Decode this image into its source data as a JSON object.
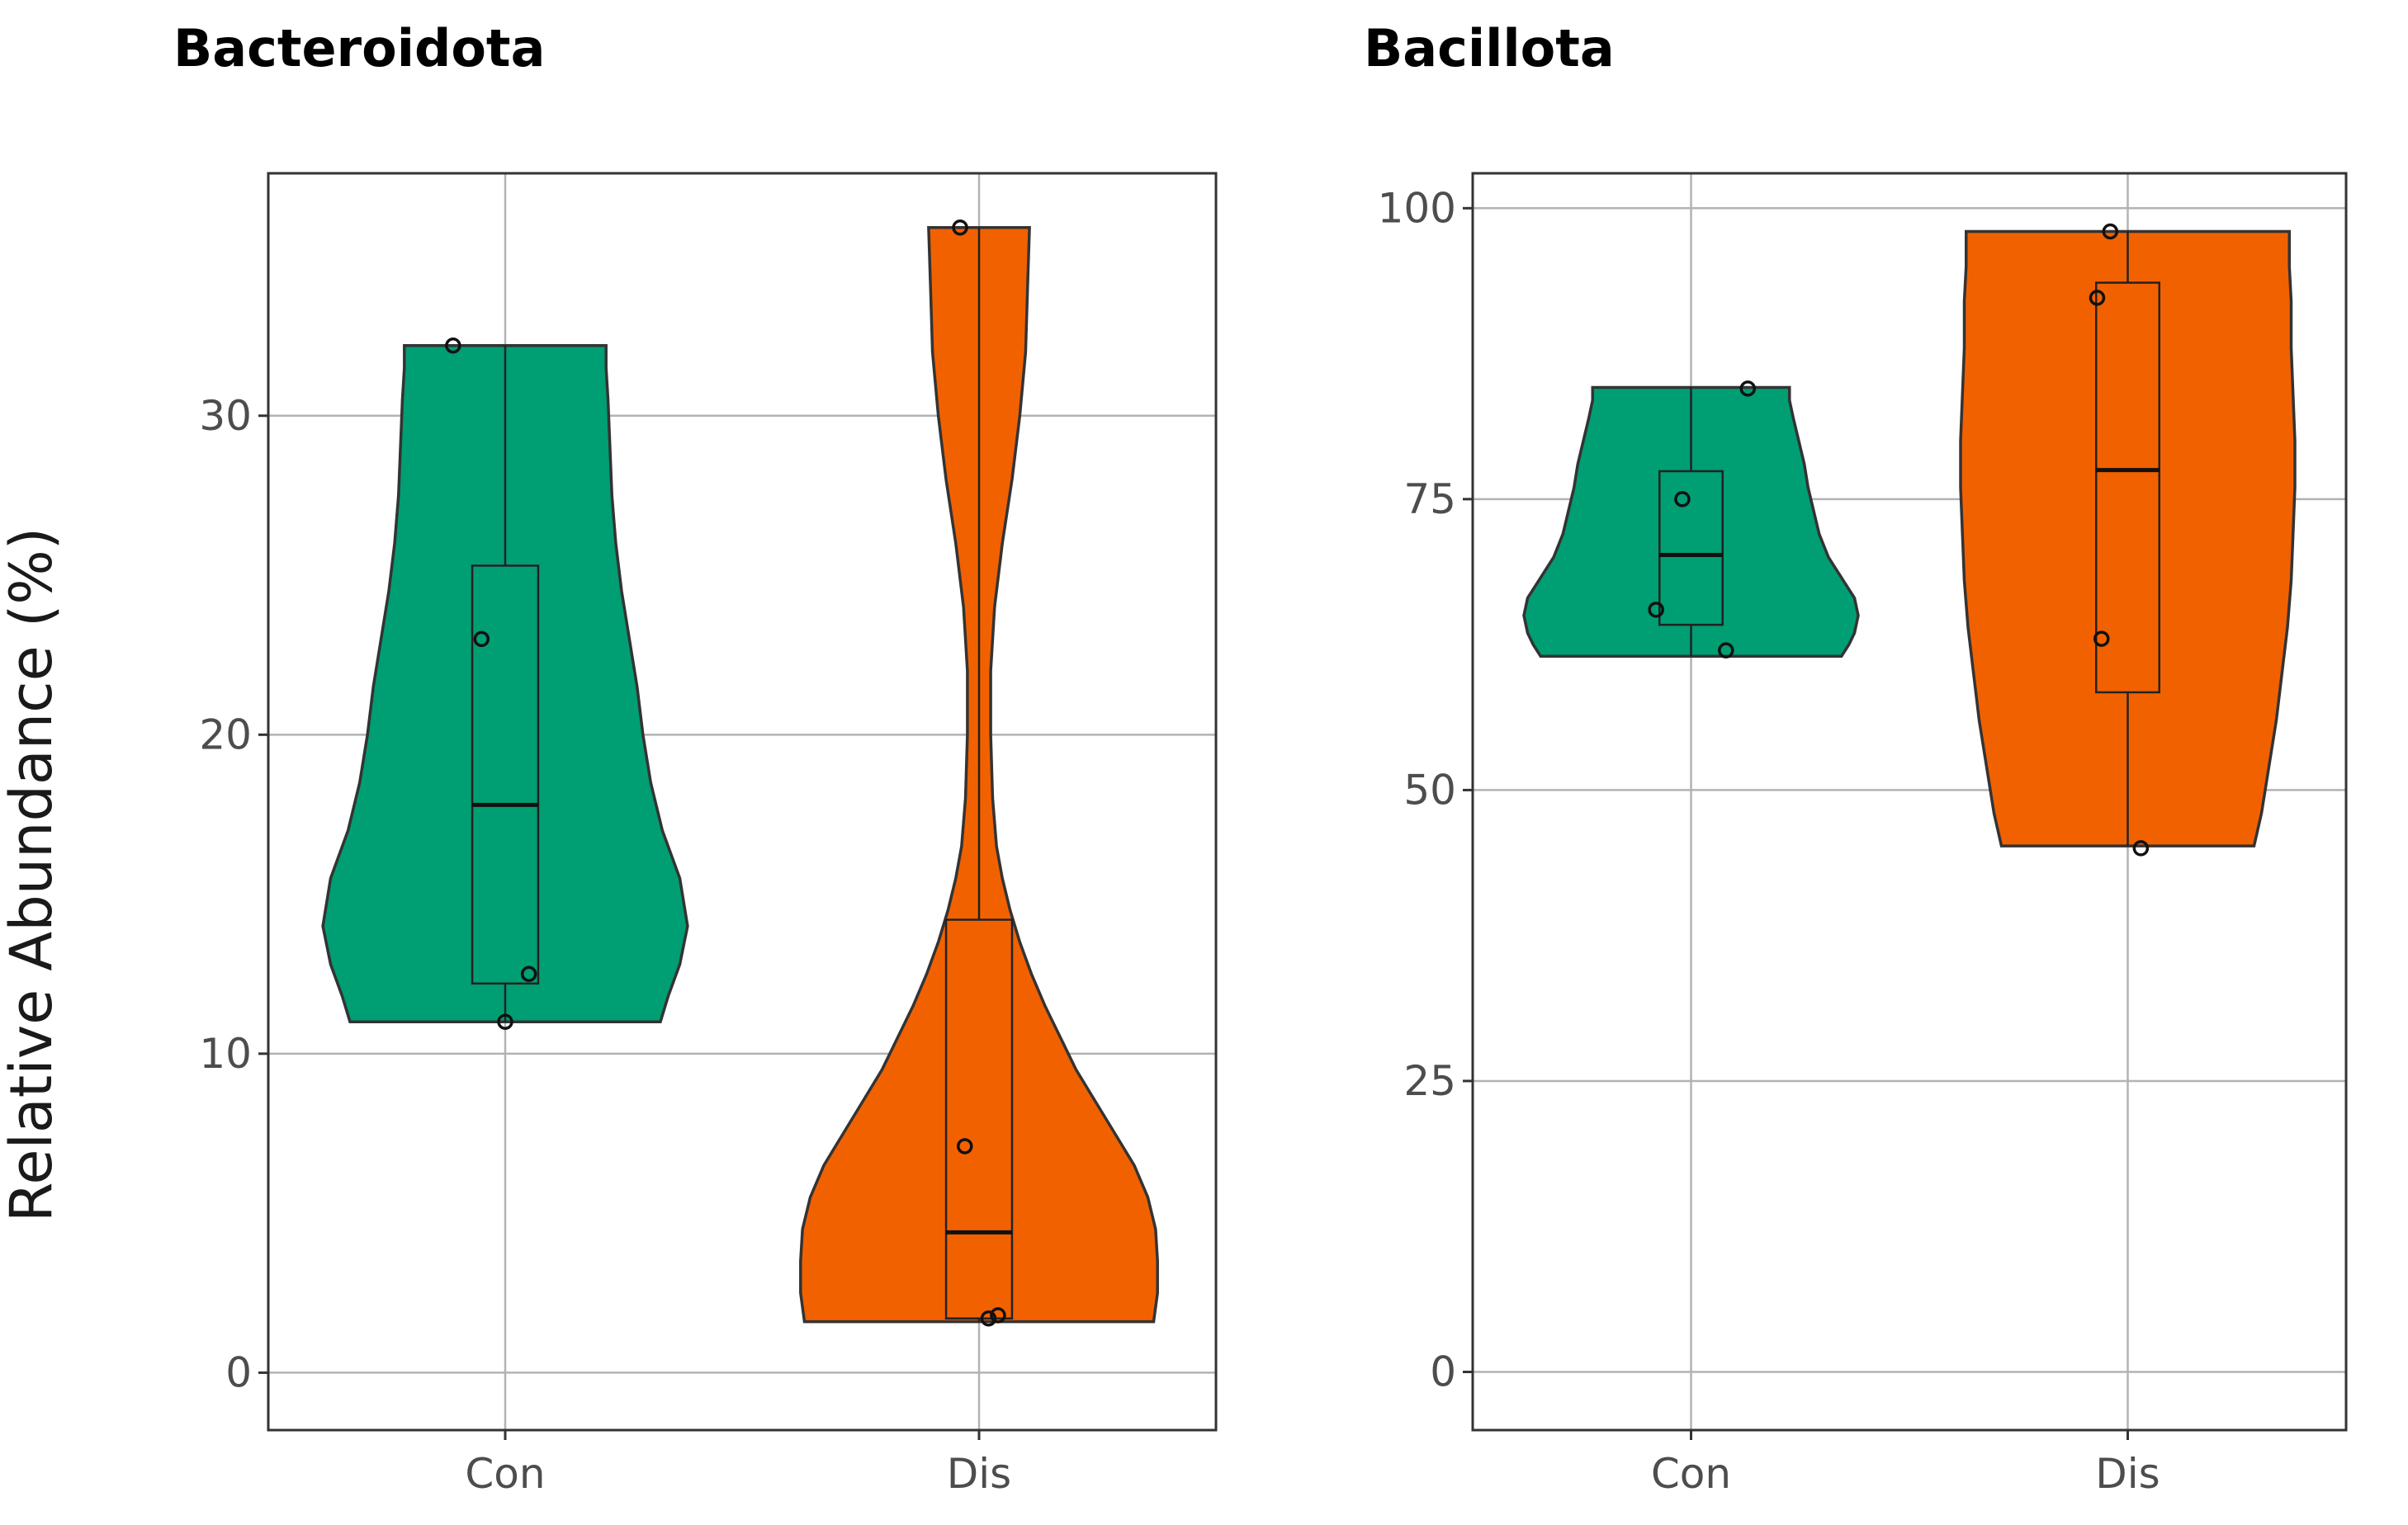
{
  "chart_data": [
    {
      "type": "violin",
      "title": "Bacteroidota",
      "ylabel": "Relative Abundance (%)",
      "xlabel": "",
      "ylim": [
        -1.8,
        37.6
      ],
      "yticks": [
        0,
        10,
        20,
        30
      ],
      "categories": [
        "Con",
        "Dis"
      ],
      "grid": true,
      "groups": [
        {
          "name": "Con",
          "color": "#009E73",
          "min": 11.0,
          "max": 32.2,
          "violin_profile": [
            [
              11.0,
              0.8
            ],
            [
              11.8,
              0.84
            ],
            [
              12.8,
              0.9
            ],
            [
              14.0,
              0.94
            ],
            [
              15.5,
              0.9
            ],
            [
              17.0,
              0.81
            ],
            [
              18.5,
              0.75
            ],
            [
              20.0,
              0.71
            ],
            [
              21.5,
              0.68
            ],
            [
              23.0,
              0.64
            ],
            [
              24.5,
              0.6
            ],
            [
              26.0,
              0.57
            ],
            [
              27.5,
              0.55
            ],
            [
              29.0,
              0.54
            ],
            [
              30.5,
              0.53
            ],
            [
              31.5,
              0.52
            ],
            [
              32.2,
              0.52
            ]
          ],
          "box": {
            "q1": 12.2,
            "median": 17.8,
            "q3": 25.3
          },
          "points": [
            32.2,
            23.0,
            12.5,
            11.0
          ],
          "jitter": [
            -0.11,
            -0.05,
            0.05,
            0.0
          ]
        },
        {
          "name": "Dis",
          "color": "#F26100",
          "min": 1.6,
          "max": 35.9,
          "violin_profile": [
            [
              1.6,
              0.9
            ],
            [
              2.5,
              0.92
            ],
            [
              3.5,
              0.92
            ],
            [
              4.5,
              0.91
            ],
            [
              5.5,
              0.87
            ],
            [
              6.5,
              0.8
            ],
            [
              7.5,
              0.7
            ],
            [
              8.5,
              0.6
            ],
            [
              9.5,
              0.5
            ],
            [
              10.5,
              0.42
            ],
            [
              11.5,
              0.34
            ],
            [
              12.5,
              0.27
            ],
            [
              13.5,
              0.21
            ],
            [
              14.5,
              0.16
            ],
            [
              15.5,
              0.12
            ],
            [
              16.5,
              0.09
            ],
            [
              18.0,
              0.07
            ],
            [
              20.0,
              0.06
            ],
            [
              22.0,
              0.06
            ],
            [
              24.0,
              0.08
            ],
            [
              26.0,
              0.12
            ],
            [
              28.0,
              0.17
            ],
            [
              30.0,
              0.21
            ],
            [
              32.0,
              0.24
            ],
            [
              34.0,
              0.25
            ],
            [
              35.9,
              0.26
            ]
          ],
          "box": {
            "q1": 1.7,
            "median": 4.4,
            "q3": 14.2
          },
          "points": [
            35.9,
            7.1,
            1.7,
            1.8
          ],
          "jitter": [
            -0.04,
            -0.03,
            0.02,
            0.04
          ]
        }
      ]
    },
    {
      "type": "violin",
      "title": "Bacillota",
      "ylabel": "",
      "xlabel": "",
      "ylim": [
        -5,
        103
      ],
      "yticks": [
        0,
        25,
        50,
        75,
        100
      ],
      "categories": [
        "Con",
        "Dis"
      ],
      "grid": true,
      "groups": [
        {
          "name": "Con",
          "color": "#009E73",
          "min": 61.5,
          "max": 84.6,
          "violin_profile": [
            [
              61.5,
              0.81
            ],
            [
              62.5,
              0.85
            ],
            [
              63.5,
              0.88
            ],
            [
              65.0,
              0.9
            ],
            [
              66.5,
              0.88
            ],
            [
              68.0,
              0.82
            ],
            [
              70.0,
              0.74
            ],
            [
              72.0,
              0.69
            ],
            [
              74.0,
              0.66
            ],
            [
              76.0,
              0.63
            ],
            [
              78.0,
              0.61
            ],
            [
              80.0,
              0.58
            ],
            [
              82.0,
              0.55
            ],
            [
              83.5,
              0.53
            ],
            [
              84.6,
              0.53
            ]
          ],
          "box": {
            "q1": 64.2,
            "median": 70.2,
            "q3": 77.4
          },
          "points": [
            84.5,
            75.0,
            65.5,
            62.0
          ],
          "jitter": [
            0.13,
            -0.02,
            -0.08,
            0.08
          ]
        },
        {
          "name": "Dis",
          "color": "#F26100",
          "min": 45.2,
          "max": 98.0,
          "violin_profile": [
            [
              45.2,
              0.68
            ],
            [
              48.0,
              0.72
            ],
            [
              52.0,
              0.76
            ],
            [
              56.0,
              0.8
            ],
            [
              60.0,
              0.83
            ],
            [
              64.0,
              0.86
            ],
            [
              68.0,
              0.88
            ],
            [
              72.0,
              0.89
            ],
            [
              76.0,
              0.9
            ],
            [
              80.0,
              0.9
            ],
            [
              84.0,
              0.89
            ],
            [
              88.0,
              0.88
            ],
            [
              92.0,
              0.88
            ],
            [
              95.0,
              0.87
            ],
            [
              98.0,
              0.87
            ]
          ],
          "box": {
            "q1": 58.4,
            "median": 77.5,
            "q3": 93.6
          },
          "points": [
            98.0,
            92.3,
            63.0,
            45.0
          ],
          "jitter": [
            -0.04,
            -0.07,
            -0.06,
            0.03
          ]
        }
      ]
    }
  ]
}
